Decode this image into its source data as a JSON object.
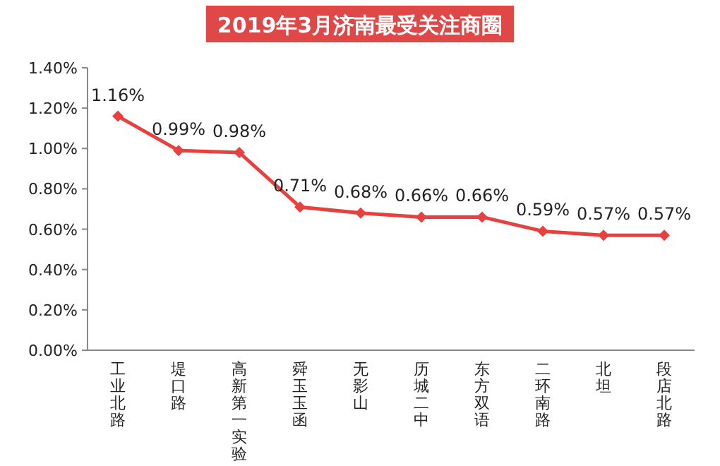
{
  "chart_data": {
    "type": "line",
    "title": "2019年3月济南最受关注商圈",
    "categories": [
      "工业北路",
      "堤口路",
      "高新第一实验",
      "舜玉玉函",
      "无影山",
      "历城二中",
      "东方双语",
      "二环南路",
      "北坦",
      "段店北路"
    ],
    "values": [
      1.16,
      0.99,
      0.98,
      0.71,
      0.68,
      0.66,
      0.66,
      0.59,
      0.57,
      0.57
    ],
    "value_labels": [
      "1.16%",
      "0.99%",
      "0.98%",
      "0.71%",
      "0.68%",
      "0.66%",
      "0.66%",
      "0.59%",
      "0.57%",
      "0.57%"
    ],
    "color": "#e8403f",
    "marker": "diamond",
    "ylim": [
      0,
      1.4
    ],
    "yticks": [
      {
        "value": 0,
        "label": "0.00%"
      },
      {
        "value": 0.2,
        "label": "0.20%"
      },
      {
        "value": 0.4,
        "label": "0.40%"
      },
      {
        "value": 0.6,
        "label": "0.60%"
      },
      {
        "value": 0.8,
        "label": "0.80%"
      },
      {
        "value": 1.0,
        "label": "1.00%"
      },
      {
        "value": 1.2,
        "label": "1.20%"
      },
      {
        "value": 1.4,
        "label": "1.40%"
      }
    ]
  }
}
